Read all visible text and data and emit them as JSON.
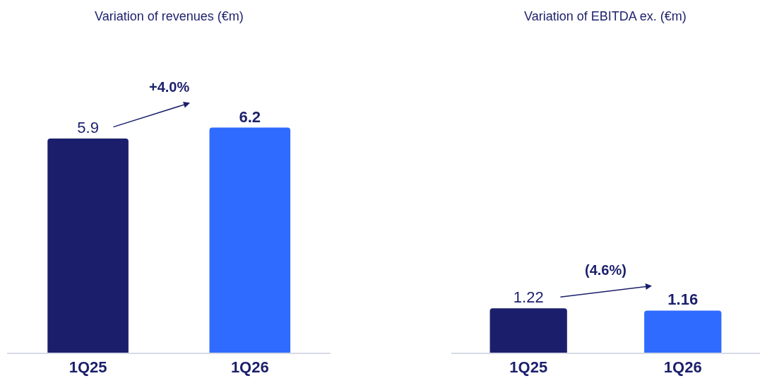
{
  "chart_data": [
    {
      "type": "bar",
      "title": "Variation of revenues (€m)",
      "categories": [
        "1Q25",
        "1Q26"
      ],
      "values": [
        5.9,
        6.2
      ],
      "colors": [
        "#1b1f6b",
        "#2f6bff"
      ],
      "data_labels": true,
      "tick_labels": "x",
      "annotations": [
        "+4.0%"
      ]
    },
    {
      "type": "bar",
      "title": "Variation of EBITDA ex. (€m)",
      "categories": [
        "1Q25",
        "1Q26"
      ],
      "values": [
        1.22,
        1.16
      ],
      "colors": [
        "#1b1f6b",
        "#2f6bff"
      ],
      "data_labels": true,
      "tick_labels": "x",
      "annotations": [
        "(4.6%)"
      ]
    }
  ]
}
